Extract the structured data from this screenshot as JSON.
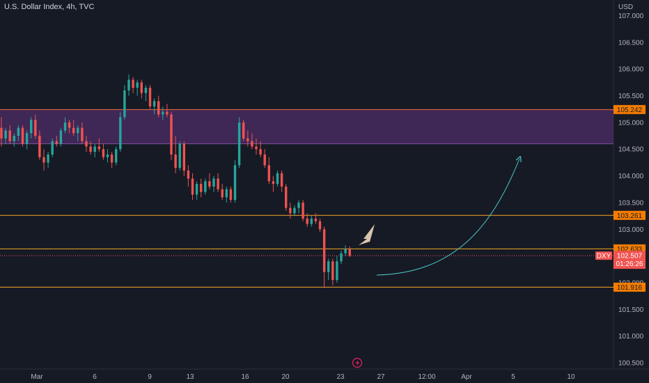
{
  "header": {
    "title": "U.S. Dollar Index, 4h, TVC",
    "currency": "USD"
  },
  "colors": {
    "background": "#161a25",
    "up": "#26a69a",
    "down": "#ef5350",
    "zone_fill": "#4a2a63",
    "zone_border": "#f0703f",
    "level_line": "#f5a623",
    "price_tag": "#f57c00",
    "current_price_tag": "#ef5350",
    "projection_arrow": "#4dc9c9",
    "note_arrow": "#d9c4b0"
  },
  "chart_data": {
    "type": "candlestick",
    "symbol": "DXY",
    "timeframe": "4h",
    "ylim": [
      100.45,
      107.2
    ],
    "yticks": [
      "107.000",
      "106.500",
      "106.000",
      "105.500",
      "105.000",
      "104.500",
      "104.000",
      "103.500",
      "103.000",
      "102.500",
      "102.000",
      "101.500",
      "101.000",
      "100.500"
    ],
    "xticks": [
      "Mar",
      "6",
      "9",
      "13",
      "16",
      "20",
      "23",
      "27",
      "12:00",
      "Apr",
      "5",
      "10"
    ],
    "zone": {
      "top": 105.242,
      "bottom": 104.6
    },
    "levels": [
      {
        "value": 105.242,
        "label": "105.242"
      },
      {
        "value": 103.261,
        "label": "103.261"
      },
      {
        "value": 102.633,
        "label": "102.633"
      },
      {
        "value": 101.916,
        "label": "101.916"
      }
    ],
    "current_price": {
      "symbol": "DXY",
      "value": 102.507,
      "label": "102.507",
      "countdown": "01:26:26"
    },
    "candles": [
      [
        104.9,
        105.1,
        104.55,
        104.7
      ],
      [
        104.7,
        104.9,
        104.6,
        104.85
      ],
      [
        104.85,
        104.95,
        104.6,
        104.65
      ],
      [
        104.65,
        104.8,
        104.55,
        104.75
      ],
      [
        104.75,
        104.95,
        104.65,
        104.9
      ],
      [
        104.9,
        104.95,
        104.55,
        104.6
      ],
      [
        104.6,
        104.85,
        104.5,
        104.8
      ],
      [
        104.8,
        105.1,
        104.7,
        105.05
      ],
      [
        105.05,
        105.15,
        104.7,
        104.75
      ],
      [
        104.75,
        104.85,
        104.3,
        104.35
      ],
      [
        104.35,
        104.5,
        104.1,
        104.25
      ],
      [
        104.25,
        104.45,
        104.15,
        104.4
      ],
      [
        104.4,
        104.7,
        104.35,
        104.65
      ],
      [
        104.65,
        104.75,
        104.55,
        104.6
      ],
      [
        104.6,
        104.9,
        104.55,
        104.85
      ],
      [
        104.85,
        105.1,
        104.8,
        105.0
      ],
      [
        105.0,
        105.05,
        104.8,
        104.9
      ],
      [
        104.9,
        105.05,
        104.75,
        104.8
      ],
      [
        104.8,
        104.95,
        104.65,
        104.9
      ],
      [
        104.9,
        105.0,
        104.6,
        104.65
      ],
      [
        104.65,
        104.75,
        104.45,
        104.55
      ],
      [
        104.55,
        104.65,
        104.4,
        104.45
      ],
      [
        104.45,
        104.6,
        104.35,
        104.55
      ],
      [
        104.55,
        104.7,
        104.45,
        104.5
      ],
      [
        104.5,
        104.6,
        104.3,
        104.35
      ],
      [
        104.35,
        104.5,
        104.25,
        104.4
      ],
      [
        104.4,
        104.45,
        104.15,
        104.25
      ],
      [
        104.25,
        104.55,
        104.2,
        104.5
      ],
      [
        104.5,
        105.2,
        104.45,
        105.1
      ],
      [
        105.1,
        105.7,
        105.05,
        105.6
      ],
      [
        105.6,
        105.9,
        105.5,
        105.8
      ],
      [
        105.8,
        105.85,
        105.55,
        105.65
      ],
      [
        105.65,
        105.8,
        105.5,
        105.75
      ],
      [
        105.75,
        105.8,
        105.45,
        105.55
      ],
      [
        105.55,
        105.7,
        105.4,
        105.65
      ],
      [
        105.65,
        105.7,
        105.25,
        105.3
      ],
      [
        105.3,
        105.45,
        105.15,
        105.4
      ],
      [
        105.4,
        105.5,
        105.1,
        105.15
      ],
      [
        105.15,
        105.3,
        105.05,
        105.2
      ],
      [
        105.2,
        105.35,
        105.1,
        105.15
      ],
      [
        105.15,
        105.2,
        104.3,
        104.4
      ],
      [
        104.4,
        104.75,
        104.05,
        104.15
      ],
      [
        104.15,
        104.65,
        104.1,
        104.6
      ],
      [
        104.6,
        104.65,
        104.0,
        104.1
      ],
      [
        104.1,
        104.2,
        103.8,
        103.95
      ],
      [
        103.95,
        104.05,
        103.55,
        103.65
      ],
      [
        103.65,
        103.9,
        103.55,
        103.85
      ],
      [
        103.85,
        103.95,
        103.6,
        103.7
      ],
      [
        103.7,
        103.95,
        103.65,
        103.9
      ],
      [
        103.9,
        104.05,
        103.75,
        103.8
      ],
      [
        103.8,
        104.0,
        103.7,
        103.95
      ],
      [
        103.95,
        104.05,
        103.7,
        103.75
      ],
      [
        103.75,
        103.85,
        103.55,
        103.6
      ],
      [
        103.6,
        103.8,
        103.5,
        103.75
      ],
      [
        103.75,
        103.8,
        103.5,
        103.55
      ],
      [
        103.55,
        104.3,
        103.5,
        104.2
      ],
      [
        104.2,
        105.1,
        104.15,
        105.0
      ],
      [
        105.0,
        105.05,
        104.65,
        104.7
      ],
      [
        104.7,
        104.85,
        104.55,
        104.65
      ],
      [
        104.65,
        104.8,
        104.5,
        104.55
      ],
      [
        104.55,
        104.7,
        104.4,
        104.5
      ],
      [
        104.5,
        104.65,
        104.35,
        104.4
      ],
      [
        104.4,
        104.5,
        104.15,
        104.2
      ],
      [
        104.2,
        104.35,
        103.85,
        103.9
      ],
      [
        103.9,
        104.0,
        103.7,
        103.85
      ],
      [
        103.85,
        104.1,
        103.8,
        104.05
      ],
      [
        104.05,
        104.1,
        103.7,
        103.8
      ],
      [
        103.8,
        103.85,
        103.35,
        103.4
      ],
      [
        103.4,
        103.5,
        103.2,
        103.3
      ],
      [
        103.3,
        103.45,
        103.25,
        103.4
      ],
      [
        103.4,
        103.55,
        103.3,
        103.5
      ],
      [
        103.5,
        103.55,
        103.15,
        103.2
      ],
      [
        103.2,
        103.3,
        103.05,
        103.1
      ],
      [
        103.1,
        103.25,
        103.05,
        103.2
      ],
      [
        103.2,
        103.3,
        103.1,
        103.15
      ],
      [
        103.15,
        103.2,
        102.95,
        103.0
      ],
      [
        103.0,
        103.05,
        101.9,
        102.2
      ],
      [
        102.2,
        102.45,
        102.05,
        102.4
      ],
      [
        102.4,
        102.45,
        101.95,
        102.05
      ],
      [
        102.05,
        102.5,
        102.0,
        102.4
      ],
      [
        102.4,
        102.6,
        102.35,
        102.55
      ],
      [
        102.55,
        102.7,
        102.5,
        102.63
      ],
      [
        102.63,
        102.68,
        102.48,
        102.507
      ]
    ],
    "annotations": [
      {
        "type": "arrow",
        "description": "projection curve from 102.2 up to 104.35"
      },
      {
        "type": "arrow",
        "description": "marker pointing at last candle"
      }
    ]
  }
}
